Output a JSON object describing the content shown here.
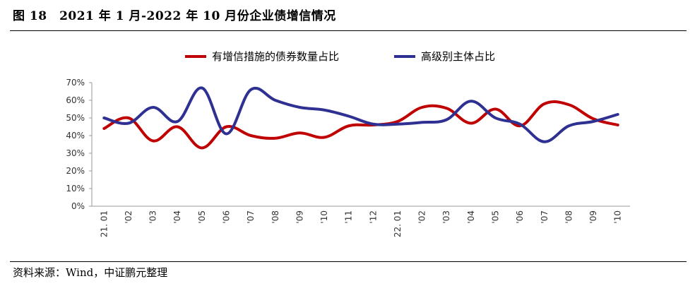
{
  "figure": {
    "title": "图 18　2021 年 1 月-2022 年 10 月份企业债增信情况",
    "source": "资料来源：Wind，中证鹏元整理"
  },
  "colors": {
    "series1": "#C00000",
    "series2": "#2E3192"
  },
  "chart_data": {
    "type": "line",
    "title": "",
    "xlabel": "",
    "ylabel": "",
    "ylim": [
      0,
      70
    ],
    "yticks": [
      0,
      10,
      20,
      30,
      40,
      50,
      60,
      70
    ],
    "ytick_labels": [
      "0%",
      "10%",
      "20%",
      "30%",
      "40%",
      "50%",
      "60%",
      "70%"
    ],
    "categories": [
      "21. 01",
      "'02",
      "'03",
      "'04",
      "'05",
      "'06",
      "'07",
      "'08",
      "'09",
      "'10",
      "'11",
      "'12",
      "22. 01",
      "'02",
      "'03",
      "'04",
      "'05",
      "'06",
      "'07",
      "'08",
      "'09",
      "'10"
    ],
    "legend_position": "top-center",
    "grid": false,
    "series": [
      {
        "name": "有增信措施的债券数量占比",
        "values": [
          44,
          50,
          37,
          45,
          33,
          45,
          40,
          38.5,
          41.5,
          39,
          45.5,
          46,
          48,
          56,
          55.5,
          47,
          55,
          45.5,
          58,
          57.5,
          49.5,
          46
        ]
      },
      {
        "name": "高级别主体占比",
        "values": [
          50,
          47,
          56,
          48,
          67,
          41,
          66,
          60,
          56,
          54.5,
          51,
          46.5,
          46.5,
          47.5,
          49,
          59.5,
          50,
          46.5,
          36.5,
          45.5,
          48,
          52
        ]
      }
    ]
  }
}
